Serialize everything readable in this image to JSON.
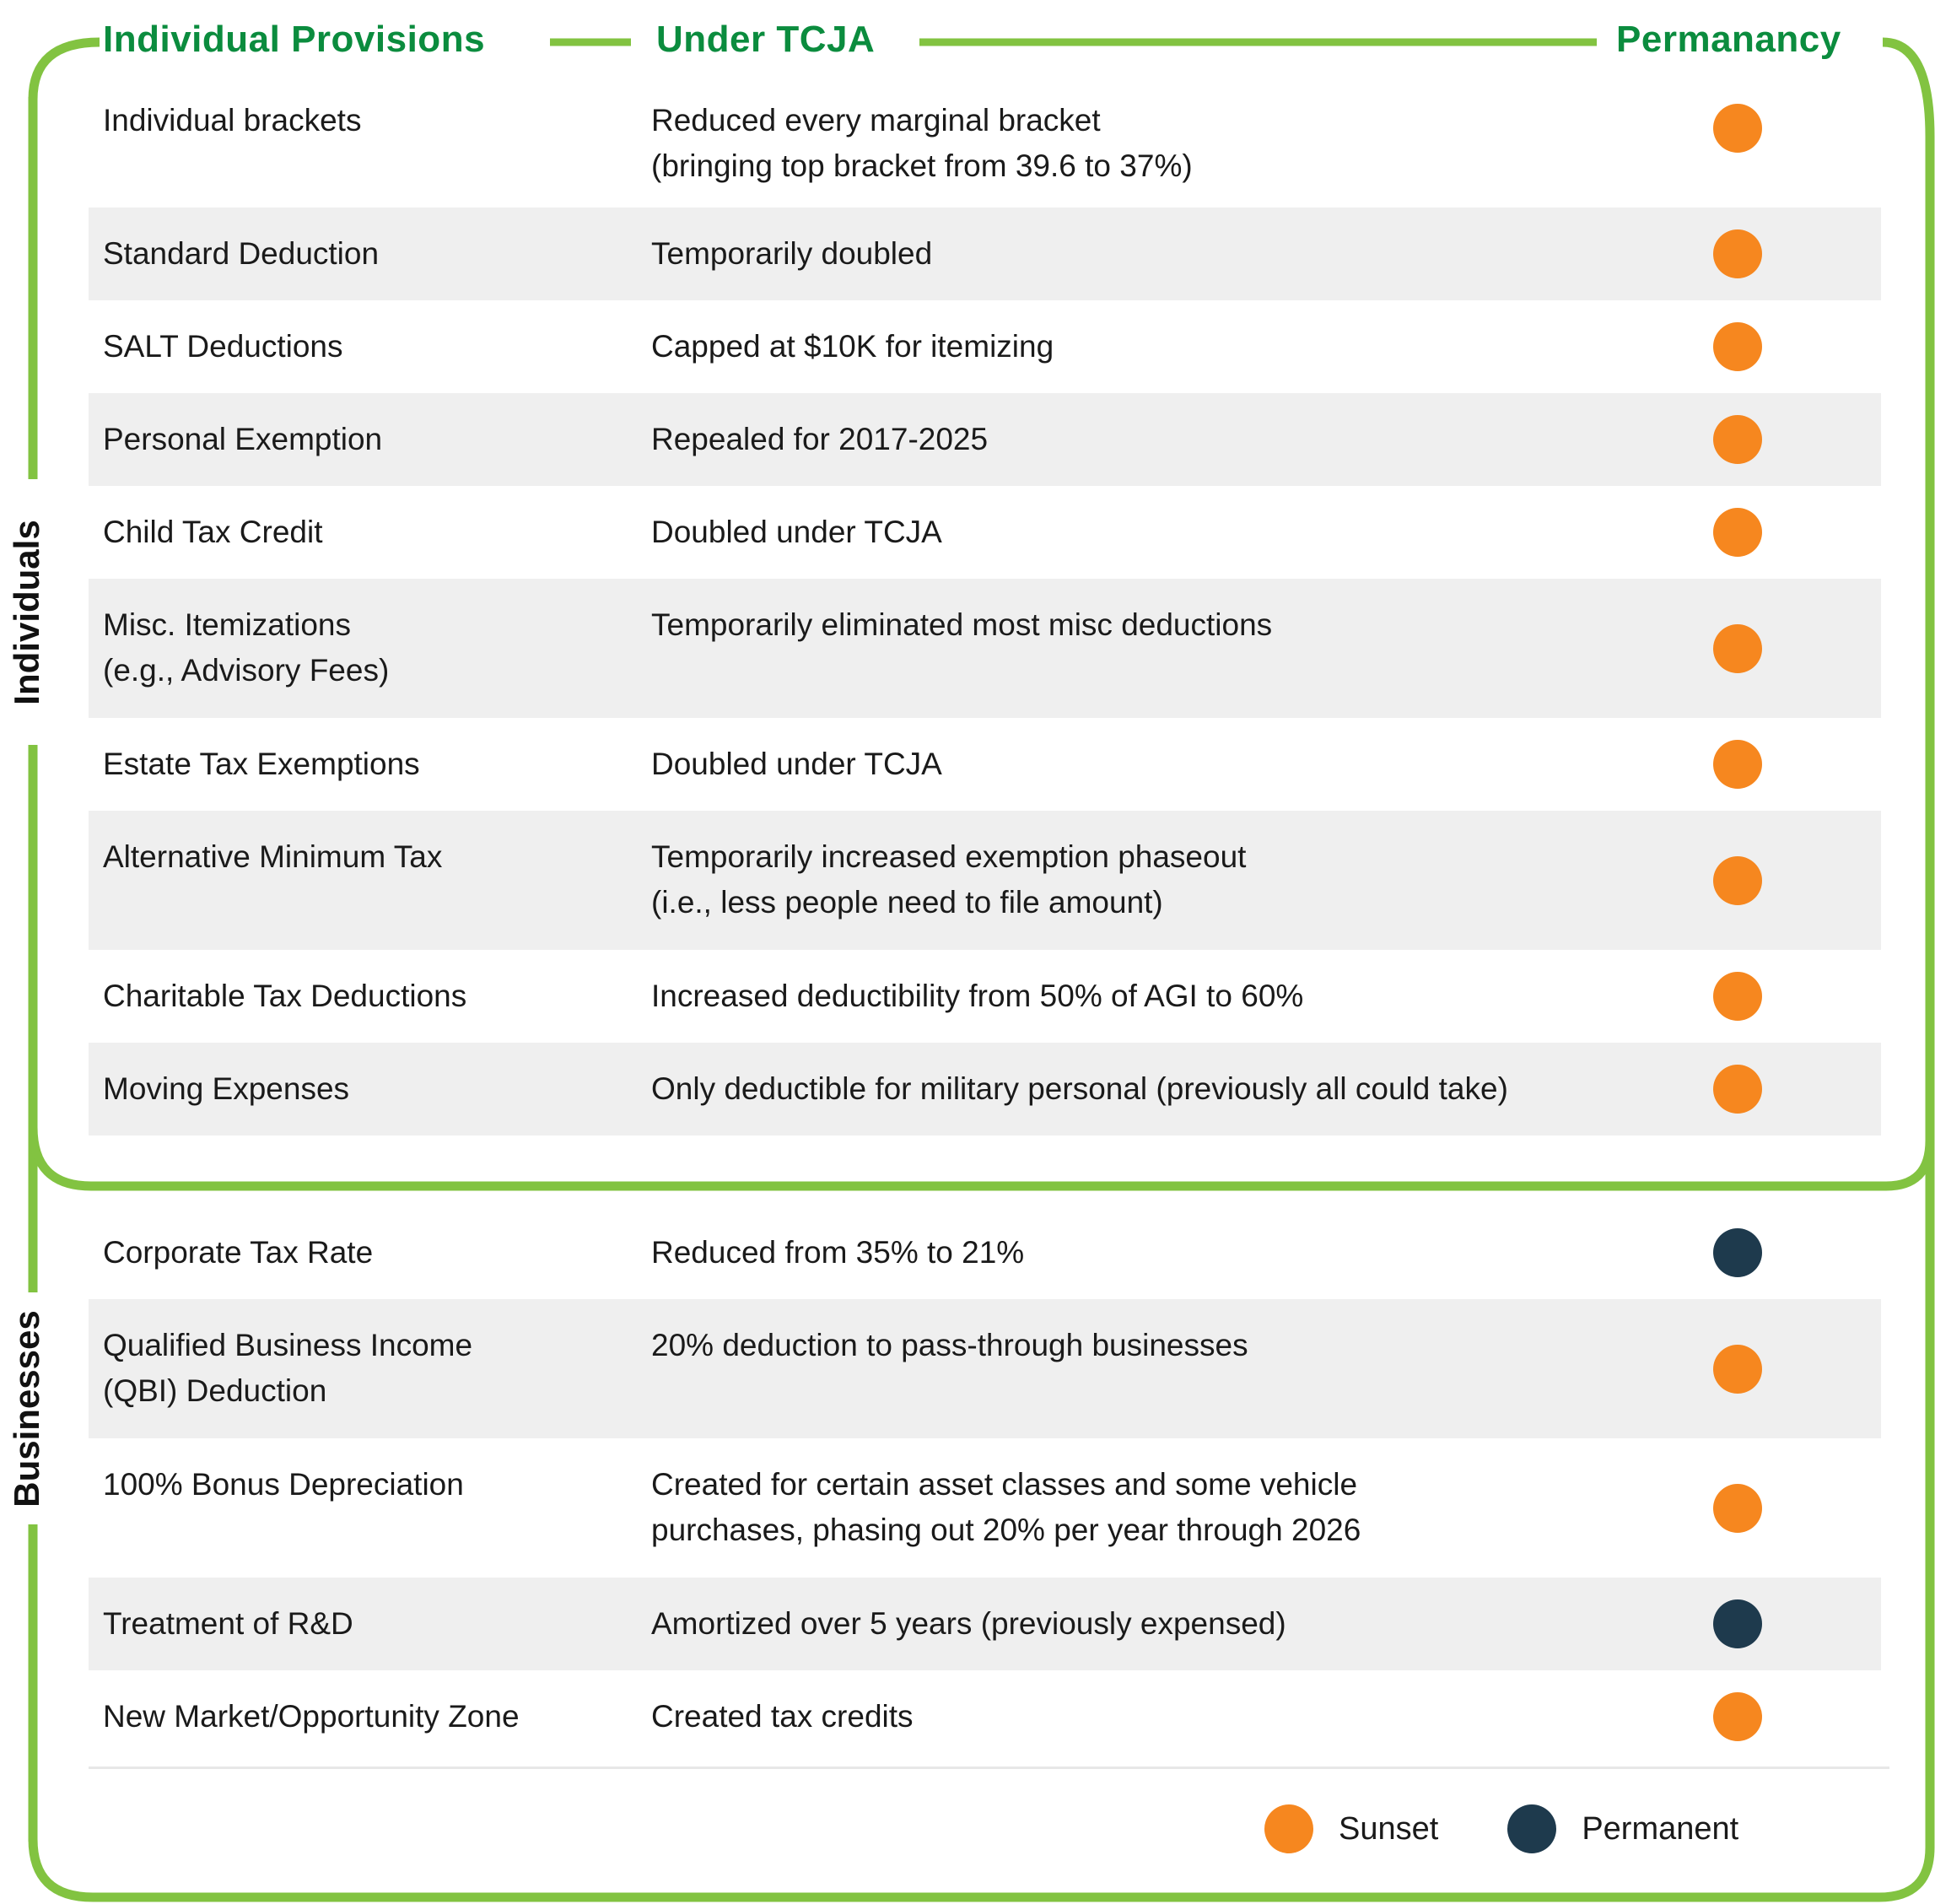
{
  "header": {
    "col1": "Individual Provisions",
    "col2": "Under TCJA",
    "col3": "Permanancy"
  },
  "sections": [
    {
      "label": "Individuals",
      "rows": [
        {
          "provision": [
            "Individual brackets"
          ],
          "description": [
            "Reduced every marginal bracket",
            "(bringing top bracket from 39.6 to 37%)"
          ],
          "status": "sunset"
        },
        {
          "provision": [
            "Standard Deduction"
          ],
          "description": [
            "Temporarily doubled"
          ],
          "status": "sunset"
        },
        {
          "provision": [
            "SALT Deductions"
          ],
          "description": [
            "Capped at $10K for itemizing"
          ],
          "status": "sunset"
        },
        {
          "provision": [
            "Personal Exemption"
          ],
          "description": [
            "Repealed for 2017-2025"
          ],
          "status": "sunset"
        },
        {
          "provision": [
            "Child Tax Credit"
          ],
          "description": [
            "Doubled under TCJA"
          ],
          "status": "sunset"
        },
        {
          "provision": [
            "Misc. Itemizations",
            "(e.g., Advisory Fees)"
          ],
          "description": [
            "Temporarily eliminated most misc deductions"
          ],
          "status": "sunset"
        },
        {
          "provision": [
            "Estate Tax Exemptions"
          ],
          "description": [
            "Doubled under TCJA"
          ],
          "status": "sunset"
        },
        {
          "provision": [
            "Alternative Minimum Tax"
          ],
          "description": [
            "Temporarily increased exemption phaseout",
            "(i.e., less people need to file amount)"
          ],
          "status": "sunset"
        },
        {
          "provision": [
            "Charitable Tax Deductions"
          ],
          "description": [
            "Increased deductibility from 50% of AGI to 60%"
          ],
          "status": "sunset"
        },
        {
          "provision": [
            "Moving Expenses"
          ],
          "description": [
            "Only deductible for military personal (previously all could take)"
          ],
          "status": "sunset"
        }
      ]
    },
    {
      "label": "Businesses",
      "rows": [
        {
          "provision": [
            "Corporate Tax Rate"
          ],
          "description": [
            "Reduced from 35% to 21%"
          ],
          "status": "permanent"
        },
        {
          "provision": [
            "Qualified Business Income",
            "(QBI) Deduction"
          ],
          "description": [
            "20% deduction to pass-through businesses"
          ],
          "status": "sunset"
        },
        {
          "provision": [
            "100% Bonus Depreciation"
          ],
          "description": [
            "Created for certain asset classes and some vehicle",
            "purchases, phasing out 20% per year through 2026"
          ],
          "status": "sunset"
        },
        {
          "provision": [
            "Treatment of R&D"
          ],
          "description": [
            "Amortized over 5 years (previously expensed)"
          ],
          "status": "permanent"
        },
        {
          "provision": [
            "New Market/Opportunity Zone"
          ],
          "description": [
            "Created tax credits"
          ],
          "status": "sunset"
        }
      ]
    }
  ],
  "legend": {
    "items": [
      {
        "label": "Sunset",
        "status": "sunset"
      },
      {
        "label": "Permanent",
        "status": "permanent"
      }
    ]
  },
  "colors": {
    "bracket_green": "#82C341",
    "header_green": "#0B8C3E",
    "sunset_orange": "#F6871F",
    "permanent_navy": "#1E3A4D",
    "row_gray": "#EFEFEF",
    "text": "#1A1A1A"
  },
  "chart_data": {
    "type": "table",
    "title": "TCJA Provisions and their Permanancy",
    "columns": [
      "Individual Provisions",
      "Under TCJA",
      "Permanancy"
    ],
    "rows": [
      {
        "section": "Individuals",
        "provision": "Individual brackets",
        "under_tcja": "Reduced every marginal bracket (bringing top bracket from 39.6 to 37%)",
        "permanancy": "Sunset"
      },
      {
        "section": "Individuals",
        "provision": "Standard Deduction",
        "under_tcja": "Temporarily doubled",
        "permanancy": "Sunset"
      },
      {
        "section": "Individuals",
        "provision": "SALT Deductions",
        "under_tcja": "Capped at $10K for itemizing",
        "permanancy": "Sunset"
      },
      {
        "section": "Individuals",
        "provision": "Personal Exemption",
        "under_tcja": "Repealed for 2017-2025",
        "permanancy": "Sunset"
      },
      {
        "section": "Individuals",
        "provision": "Child Tax Credit",
        "under_tcja": "Doubled under TCJA",
        "permanancy": "Sunset"
      },
      {
        "section": "Individuals",
        "provision": "Misc. Itemizations (e.g., Advisory Fees)",
        "under_tcja": "Temporarily eliminated most misc deductions",
        "permanancy": "Sunset"
      },
      {
        "section": "Individuals",
        "provision": "Estate Tax Exemptions",
        "under_tcja": "Doubled under TCJA",
        "permanancy": "Sunset"
      },
      {
        "section": "Individuals",
        "provision": "Alternative Minimum Tax",
        "under_tcja": "Temporarily increased exemption phaseout (i.e., less people need to file amount)",
        "permanancy": "Sunset"
      },
      {
        "section": "Individuals",
        "provision": "Charitable Tax Deductions",
        "under_tcja": "Increased deductibility from 50% of AGI to 60%",
        "permanancy": "Sunset"
      },
      {
        "section": "Individuals",
        "provision": "Moving Expenses",
        "under_tcja": "Only deductible for military personal (previously all could take)",
        "permanancy": "Sunset"
      },
      {
        "section": "Businesses",
        "provision": "Corporate Tax Rate",
        "under_tcja": "Reduced from 35% to 21%",
        "permanancy": "Permanent"
      },
      {
        "section": "Businesses",
        "provision": "Qualified Business Income (QBI) Deduction",
        "under_tcja": "20% deduction to pass-through businesses",
        "permanancy": "Sunset"
      },
      {
        "section": "Businesses",
        "provision": "100% Bonus Depreciation",
        "under_tcja": "Created for certain asset classes and some vehicle purchases, phasing out 20% per year through 2026",
        "permanancy": "Sunset"
      },
      {
        "section": "Businesses",
        "provision": "Treatment of R&D",
        "under_tcja": "Amortized over 5 years (previously expensed)",
        "permanancy": "Permanent"
      },
      {
        "section": "Businesses",
        "provision": "New Market/Opportunity Zone",
        "under_tcja": "Created tax credits",
        "permanancy": "Sunset"
      }
    ],
    "legend_entries": [
      "Sunset",
      "Permanent"
    ],
    "legend_position": "bottom-right"
  }
}
